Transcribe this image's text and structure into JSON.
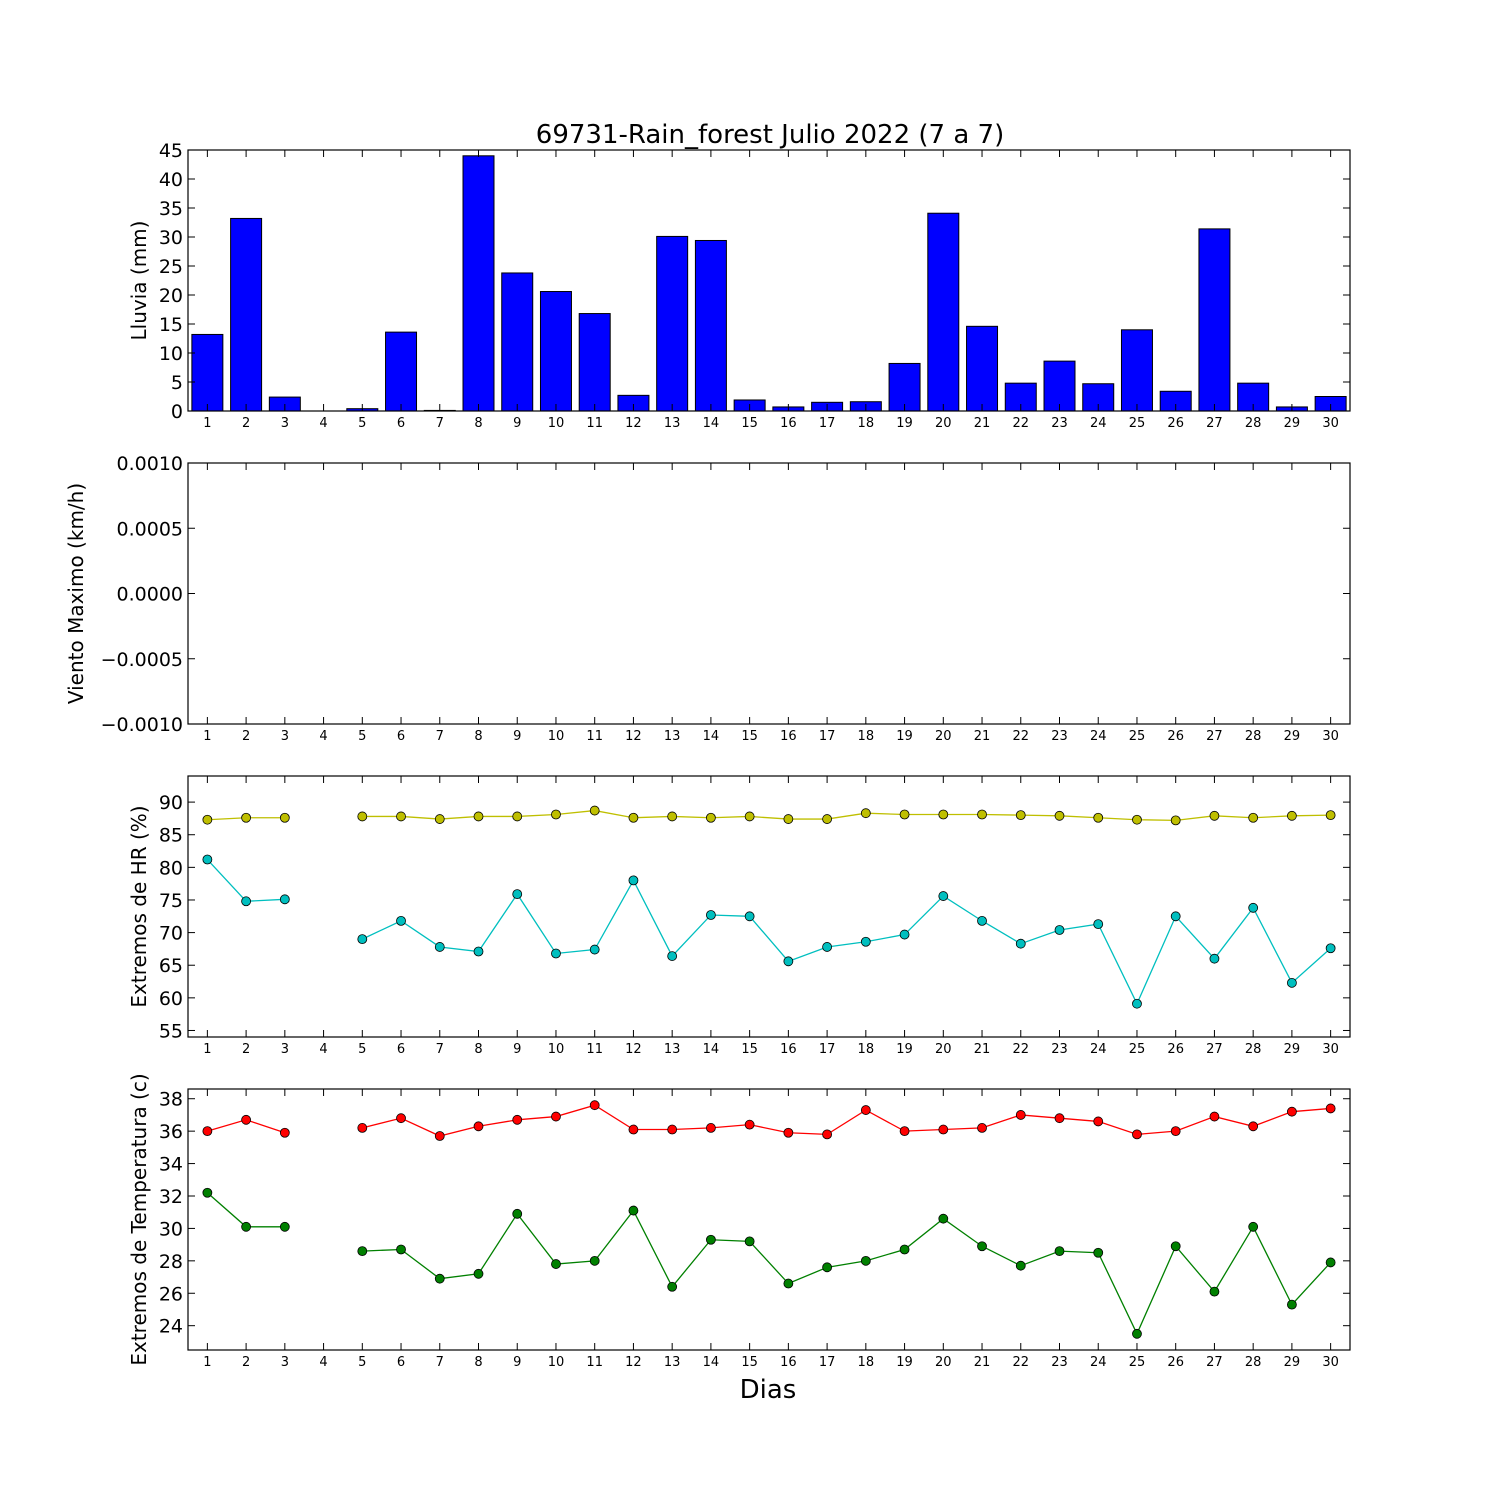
{
  "figure": {
    "title": "69731-Rain_forest Julio 2022  (7 a 7)",
    "xlabel": "Dias"
  },
  "chart_data": [
    {
      "type": "bar",
      "id": "rain",
      "ylabel": "Lluvia (mm)",
      "ylim": [
        0,
        45
      ],
      "yticks": [
        "0",
        "5",
        "10",
        "15",
        "20",
        "25",
        "30",
        "35",
        "40",
        "45"
      ],
      "x": [
        1,
        2,
        3,
        4,
        5,
        6,
        7,
        8,
        9,
        10,
        11,
        12,
        13,
        14,
        15,
        16,
        17,
        18,
        19,
        20,
        21,
        22,
        23,
        24,
        25,
        26,
        27,
        28,
        29,
        30
      ],
      "values": [
        13.2,
        33.2,
        2.4,
        0,
        0.4,
        13.6,
        0.1,
        44.0,
        23.8,
        20.6,
        16.8,
        2.7,
        30.1,
        29.4,
        1.9,
        0.7,
        1.5,
        1.6,
        8.2,
        34.1,
        14.6,
        4.8,
        8.6,
        4.7,
        14.0,
        3.4,
        31.4,
        4.8,
        0.7,
        2.5
      ],
      "color": "#0000ff",
      "grid": false
    },
    {
      "type": "line",
      "id": "wind",
      "ylabel": "Viento Maximo (km/h)",
      "ylim": [
        -0.001,
        0.001
      ],
      "yticks": [
        "−0.0010",
        "−0.0005",
        "0.0000",
        "0.0005",
        "0.0010"
      ],
      "x": [
        1,
        2,
        3,
        4,
        5,
        6,
        7,
        8,
        9,
        10,
        11,
        12,
        13,
        14,
        15,
        16,
        17,
        18,
        19,
        20,
        21,
        22,
        23,
        24,
        25,
        26,
        27,
        28,
        29,
        30
      ],
      "series": [],
      "grid": false
    },
    {
      "type": "line",
      "id": "hr",
      "ylabel": "Extremos de HR (%)",
      "ylim": [
        54,
        94
      ],
      "yticks": [
        "55",
        "60",
        "65",
        "70",
        "75",
        "80",
        "85",
        "90"
      ],
      "x": [
        1,
        2,
        3,
        4,
        5,
        6,
        7,
        8,
        9,
        10,
        11,
        12,
        13,
        14,
        15,
        16,
        17,
        18,
        19,
        20,
        21,
        22,
        23,
        24,
        25,
        26,
        27,
        28,
        29,
        30
      ],
      "series": [
        {
          "color": "#bfbf00",
          "values": [
            87.3,
            87.6,
            87.6,
            null,
            87.8,
            87.8,
            87.4,
            87.8,
            87.8,
            88.1,
            88.7,
            87.6,
            87.8,
            87.6,
            87.8,
            87.4,
            87.4,
            88.3,
            88.1,
            88.1,
            88.1,
            88.0,
            87.9,
            87.6,
            87.3,
            87.2,
            87.9,
            87.6,
            87.9,
            88.0
          ]
        },
        {
          "color": "#00bfbf",
          "values": [
            81.2,
            74.8,
            75.1,
            null,
            69.0,
            71.8,
            67.8,
            67.1,
            75.9,
            66.8,
            67.4,
            78.0,
            66.4,
            72.7,
            72.5,
            65.6,
            67.8,
            68.6,
            69.7,
            75.6,
            71.8,
            68.3,
            70.4,
            71.3,
            59.1,
            72.5,
            66.0,
            73.8,
            62.3,
            67.6
          ]
        }
      ],
      "grid": false
    },
    {
      "type": "line",
      "id": "temp",
      "ylabel": "Extremos de Temperatura (c)",
      "ylim": [
        22.5,
        38.6
      ],
      "yticks": [
        "24",
        "26",
        "28",
        "30",
        "32",
        "34",
        "36",
        "38"
      ],
      "x": [
        1,
        2,
        3,
        4,
        5,
        6,
        7,
        8,
        9,
        10,
        11,
        12,
        13,
        14,
        15,
        16,
        17,
        18,
        19,
        20,
        21,
        22,
        23,
        24,
        25,
        26,
        27,
        28,
        29,
        30
      ],
      "series": [
        {
          "color": "#ff0000",
          "values": [
            36.0,
            36.7,
            35.9,
            null,
            36.2,
            36.8,
            35.7,
            36.3,
            36.7,
            36.9,
            37.6,
            36.1,
            36.1,
            36.2,
            36.4,
            35.9,
            35.8,
            37.3,
            36.0,
            36.1,
            36.2,
            37.0,
            36.8,
            36.6,
            35.8,
            36.0,
            36.9,
            36.3,
            37.2,
            37.4
          ]
        },
        {
          "color": "#008000",
          "values": [
            32.2,
            30.1,
            30.1,
            null,
            28.6,
            28.7,
            26.9,
            27.2,
            30.9,
            27.8,
            28.0,
            31.1,
            26.4,
            29.3,
            29.2,
            26.6,
            27.6,
            28.0,
            28.7,
            30.6,
            28.9,
            27.7,
            28.6,
            28.5,
            23.5,
            28.9,
            26.1,
            30.1,
            25.3,
            27.9
          ]
        }
      ],
      "grid": false
    }
  ]
}
